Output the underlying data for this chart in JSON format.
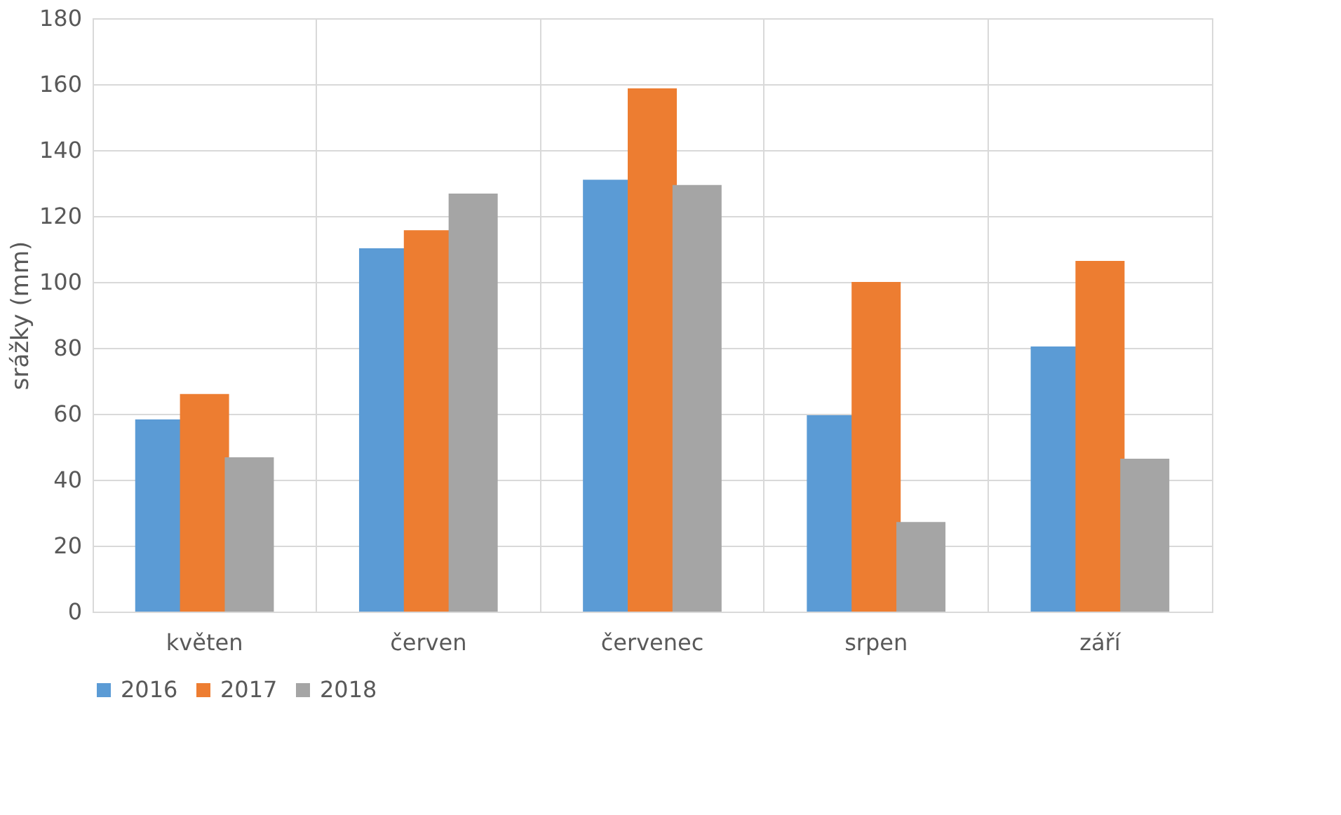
{
  "chart_data": {
    "type": "bar",
    "ylabel": "srážky (mm)",
    "categories": [
      "květen",
      "červen",
      "červenec",
      "srpen",
      "září"
    ],
    "series": [
      {
        "name": "2016",
        "color": "#5b9bd5",
        "values": [
          58.3,
          110.2,
          131,
          59.6,
          80.4
        ]
      },
      {
        "name": "2017",
        "color": "#ed7d31",
        "values": [
          66,
          115.7,
          158.7,
          100,
          106.4
        ]
      },
      {
        "name": "2018",
        "color": "#a5a5a5",
        "values": [
          46.8,
          126.8,
          129.4,
          27.2,
          46.4
        ]
      }
    ],
    "ylim": [
      0,
      180
    ],
    "yticks": [
      0,
      20,
      40,
      60,
      80,
      100,
      120,
      140,
      160,
      180
    ],
    "grid": true,
    "legend": "bottom"
  }
}
